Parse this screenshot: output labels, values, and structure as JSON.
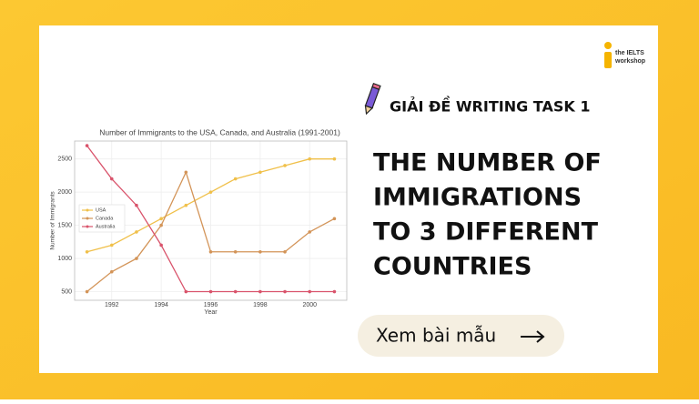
{
  "chart_data": {
    "type": "line",
    "title": "Number of Immigrants to the USA, Canada, and Australia (1991-2001)",
    "x_label": "Year",
    "y_label": "Number of Immigrants",
    "x": [
      1991,
      1992,
      1993,
      1994,
      1995,
      1996,
      1997,
      1998,
      1999,
      2000,
      2001
    ],
    "series": [
      {
        "name": "USA",
        "color": "#f0c04a",
        "values": [
          1100,
          1200,
          1400,
          1600,
          1800,
          2000,
          2200,
          2300,
          2400,
          2500,
          2500
        ]
      },
      {
        "name": "Canada",
        "color": "#d39458",
        "values": [
          500,
          800,
          1000,
          1500,
          2300,
          1100,
          1100,
          1100,
          1100,
          1400,
          1600
        ]
      },
      {
        "name": "Australia",
        "color": "#d9536b",
        "values": [
          2700,
          2200,
          1800,
          1200,
          500,
          500,
          500,
          500,
          500,
          500,
          500
        ]
      }
    ],
    "xlim": [
      1990.5,
      2001.5
    ],
    "xticks": [
      1992,
      1994,
      1996,
      1998,
      2000
    ],
    "ylim": [
      370,
      2770
    ],
    "yticks": [
      500,
      1000,
      1500,
      2000,
      2500
    ],
    "grid": true,
    "legend": "upper left"
  },
  "logo": {
    "line1": "the IELTS",
    "line2": "workshop"
  },
  "tag": "GIẢI ĐỀ WRITING TASK 1",
  "heading": [
    "THE NUMBER OF",
    "IMMIGRATIONS",
    "TO 3 DIFFERENT",
    "COUNTRIES"
  ],
  "button": "Xem bài mẫu"
}
